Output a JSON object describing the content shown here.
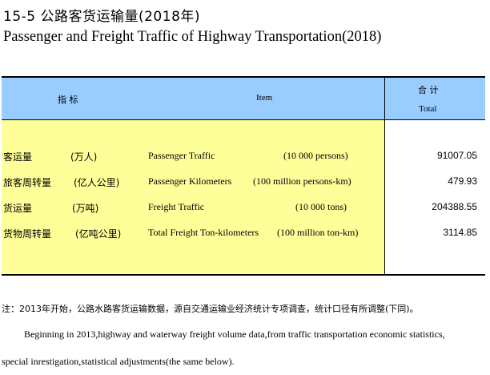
{
  "header": {
    "title_cn": "15-5    公路客货运输量(2018年)",
    "title_en": "Passenger and Freight Traffic of Highway Transportation(2018)"
  },
  "table": {
    "columns": {
      "indicator_cn": "指  标",
      "item_en": "Item",
      "total_cn": "合  计",
      "total_en": "Total"
    },
    "rows": [
      {
        "name_cn": "客运量",
        "unit_cn": "(万人)",
        "name_en": "Passenger Traffic",
        "unit_en": "(10 000 persons)",
        "total": "91007.05"
      },
      {
        "name_cn": "旅客周转量",
        "unit_cn": "(亿人公里)",
        "name_en": "Passenger Kilometers",
        "unit_en": "(100 million persons-km)",
        "total": "479.93"
      },
      {
        "name_cn": "货运量",
        "unit_cn": "(万吨)",
        "name_en": "Freight Traffic",
        "unit_en": "(10 000 tons)",
        "total": "204388.55"
      },
      {
        "name_cn": "货物周转量",
        "unit_cn": "(亿吨公里)",
        "name_en": "Total Freight Ton-kilometers",
        "unit_en": "(100  million ton-km)",
        "total": "3114.85"
      }
    ]
  },
  "notes": {
    "cn": "注：2013年开始，公路水路客货运输数据，源自交通运输业经济统计专项调查，统计口径有所调整(下同)。",
    "en_line1": "Beginning in 2013,highway and waterway freight volume data,from traffic transportation economic statistics,",
    "en_line2": "special inrestigation,statistical adjustments(the same below)."
  },
  "colors": {
    "header_bg": "#99ccff",
    "body_bg": "#ffff99"
  }
}
